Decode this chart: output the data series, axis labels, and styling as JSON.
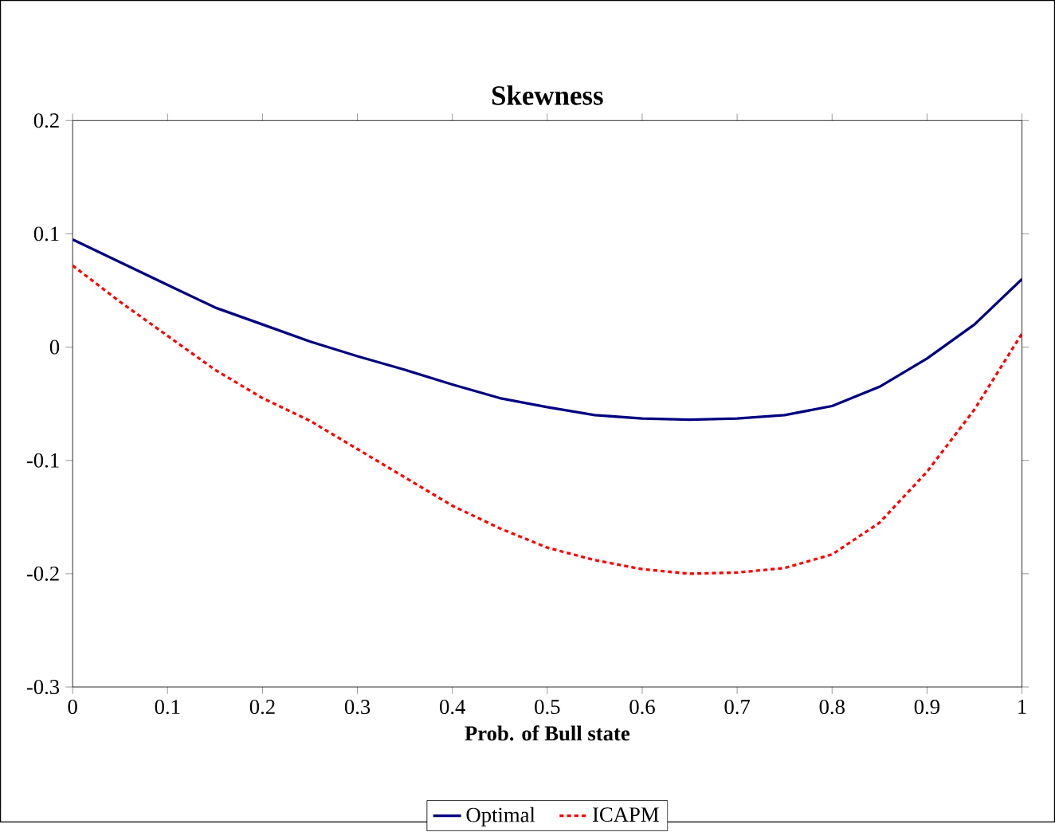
{
  "chart_data": {
    "type": "line",
    "title": "Skewness",
    "xlabel": "Prob. of Bull state",
    "xlim": [
      0,
      1
    ],
    "xticks": [
      0,
      0.1,
      0.2,
      0.3,
      0.4,
      0.5,
      0.6,
      0.7,
      0.8,
      0.9,
      1
    ],
    "ylim": [
      -0.3,
      0.2
    ],
    "yticks": [
      -0.3,
      -0.2,
      -0.1,
      0,
      0.1,
      0.2
    ],
    "x": [
      0,
      0.05,
      0.1,
      0.15,
      0.2,
      0.25,
      0.3,
      0.35,
      0.4,
      0.45,
      0.5,
      0.55,
      0.6,
      0.65,
      0.7,
      0.75,
      0.8,
      0.85,
      0.9,
      0.95,
      1
    ],
    "legend": "bottom",
    "grid": false,
    "series": [
      {
        "name": "Optimal",
        "color": "#000080",
        "line_style": "solid",
        "values": [
          0.095,
          0.075,
          0.055,
          0.035,
          0.02,
          0.005,
          -0.008,
          -0.02,
          -0.033,
          -0.045,
          -0.053,
          -0.06,
          -0.063,
          -0.064,
          -0.063,
          -0.06,
          -0.052,
          -0.035,
          -0.01,
          0.02,
          0.06
        ]
      },
      {
        "name": "ICAPM",
        "color": "#ff0000",
        "line_style": "dashed",
        "values": [
          0.072,
          0.04,
          0.01,
          -0.02,
          -0.045,
          -0.065,
          -0.09,
          -0.115,
          -0.14,
          -0.16,
          -0.177,
          -0.188,
          -0.196,
          -0.2,
          -0.199,
          -0.195,
          -0.183,
          -0.155,
          -0.11,
          -0.055,
          0.012
        ]
      }
    ]
  }
}
